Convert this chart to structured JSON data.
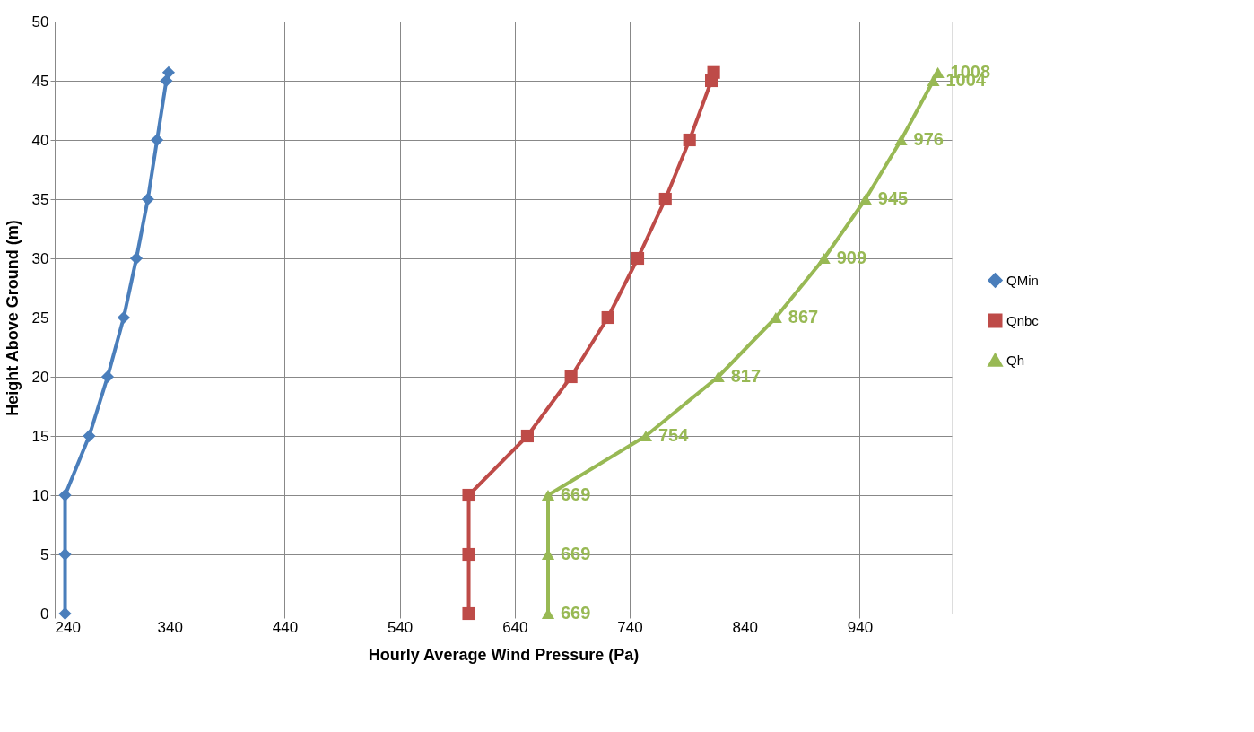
{
  "chart_data": {
    "type": "line",
    "orientation": "horizontal",
    "xlabel": "Hourly Average Wind Pressure (Pa)",
    "ylabel": "Height Above Ground (m)",
    "xlim": [
      240,
      1020
    ],
    "xticks": [
      240,
      340,
      440,
      540,
      640,
      740,
      840,
      940
    ],
    "ylim": [
      0,
      50
    ],
    "yticks": [
      0,
      5,
      10,
      15,
      20,
      25,
      30,
      35,
      40,
      45,
      50
    ],
    "grid": true,
    "legend": "right",
    "line_style": "solid",
    "series": [
      {
        "name": "QMin",
        "color": "#4a7ebb",
        "marker": "diamond",
        "x": [
          0,
          5,
          10,
          15,
          20,
          25,
          30,
          35,
          40,
          45,
          45.7
        ],
        "values": [
          249,
          249,
          249,
          270,
          286,
          300,
          311,
          321,
          329,
          337,
          339
        ]
      },
      {
        "name": "Qnbc",
        "color": "#be4b48",
        "marker": "square",
        "x": [
          0,
          5,
          10,
          15,
          20,
          25,
          30,
          35,
          40,
          45,
          45.7
        ],
        "values": [
          600,
          600,
          600,
          651,
          689,
          721,
          747,
          771,
          792,
          811,
          813
        ]
      },
      {
        "name": "Qh",
        "color": "#98b954",
        "marker": "triangle",
        "x": [
          0,
          5,
          10,
          15,
          20,
          25,
          30,
          35,
          40,
          45,
          45.7
        ],
        "values": [
          669,
          669,
          669,
          754,
          817,
          867,
          909,
          945,
          976,
          1004,
          1008
        ],
        "value_labels": [
          "669",
          "669",
          "669",
          "754",
          "817",
          "867",
          "909",
          "945",
          "976",
          "1004",
          "1008"
        ]
      }
    ]
  }
}
